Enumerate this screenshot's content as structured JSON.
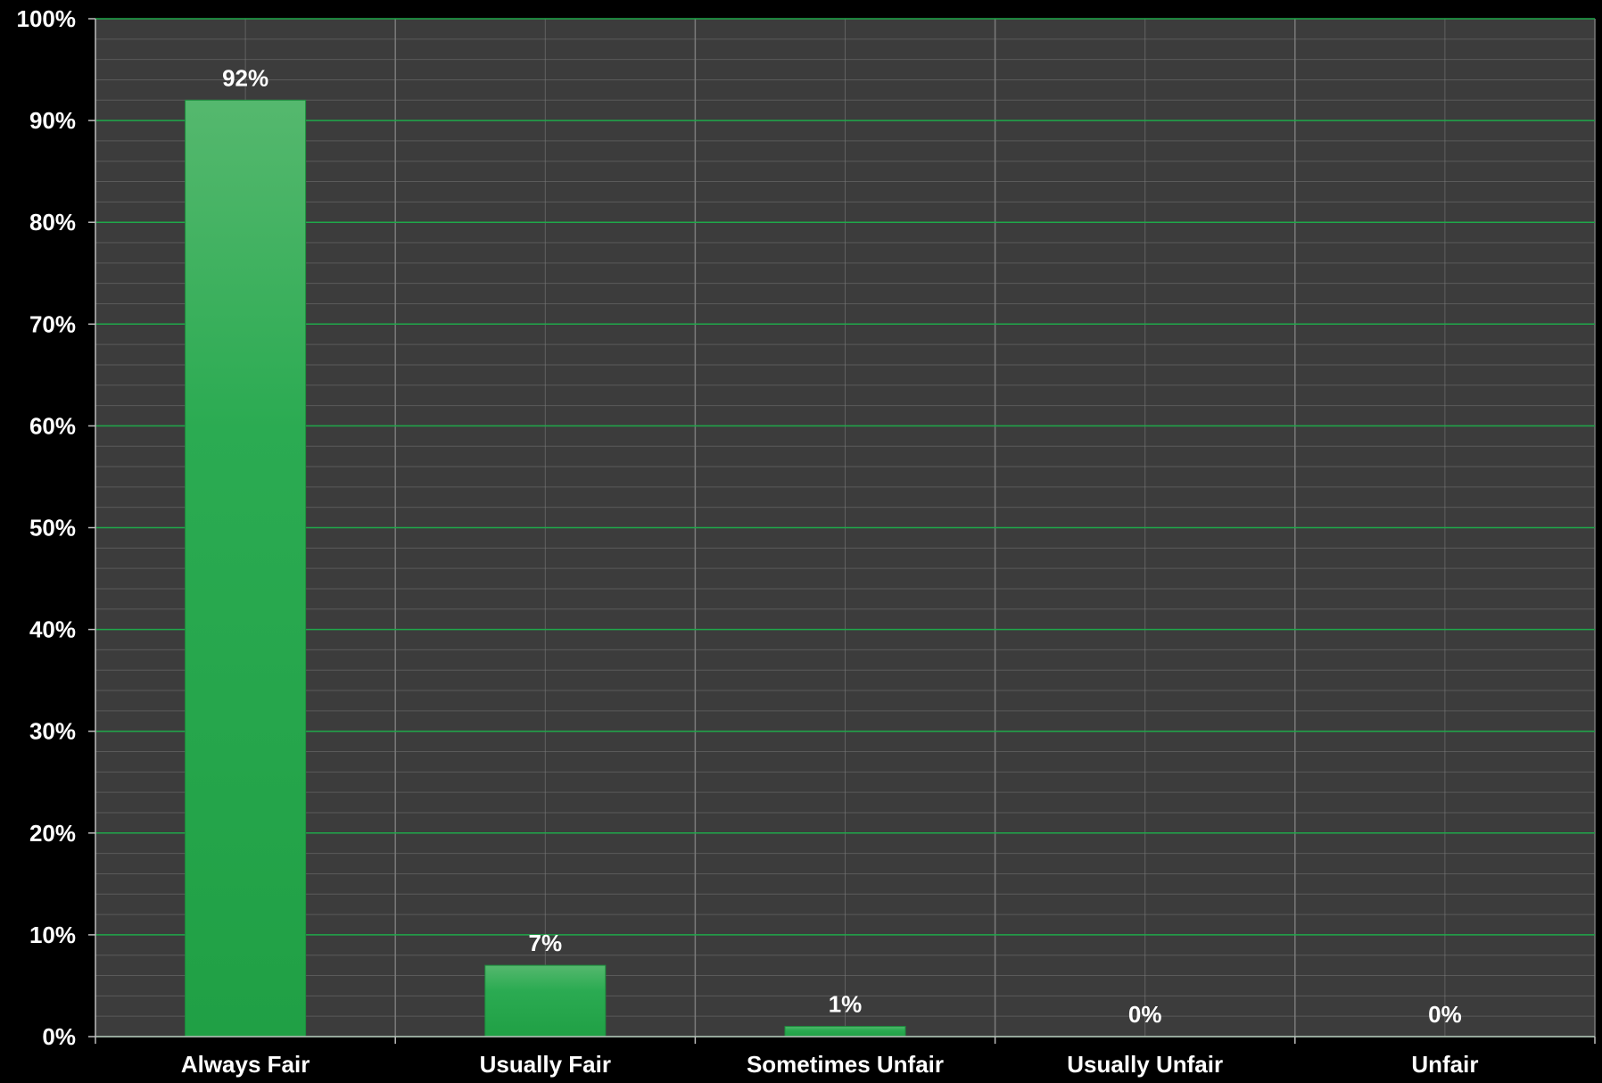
{
  "chart_data": {
    "type": "bar",
    "categories": [
      "Always Fair",
      "Usually Fair",
      "Sometimes Unfair",
      "Usually Unfair",
      "Unfair"
    ],
    "values": [
      92,
      7,
      1,
      0,
      0
    ],
    "data_labels": [
      "92%",
      "7%",
      "1%",
      "0%",
      "0%"
    ],
    "ylim": [
      0,
      100
    ],
    "y_ticks": [
      0,
      10,
      20,
      30,
      40,
      50,
      60,
      70,
      80,
      90,
      100
    ],
    "y_tick_labels": [
      "0%",
      "10%",
      "20%",
      "30%",
      "40%",
      "50%",
      "60%",
      "70%",
      "80%",
      "90%",
      "100%"
    ],
    "grid": true,
    "legend": "none",
    "title": "",
    "xlabel": "",
    "ylabel": ""
  },
  "colors": {
    "page_background": "#000000",
    "plot_background": "#3c3c3c",
    "major_gridline": "#1fa84a",
    "minor_gridline": "#5a5a5a",
    "vertical_gridline": "#7a7a7a",
    "bar_top": "#55b86e",
    "bar_bottom": "#20a045",
    "text": "#ffffff"
  }
}
